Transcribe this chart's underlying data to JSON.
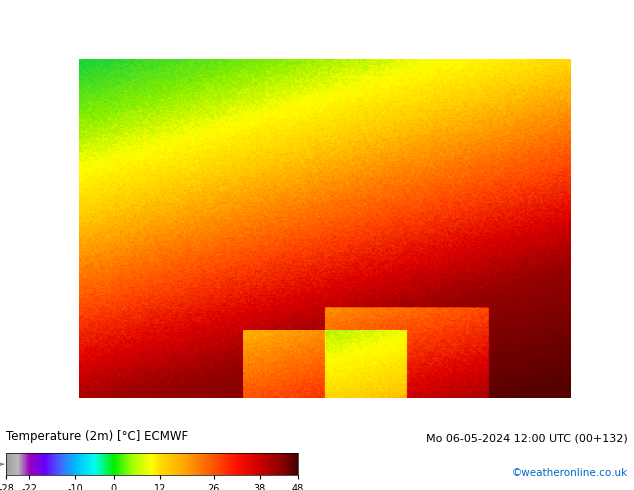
{
  "title_left": "Temperature (2m) [°C] ECMWF",
  "title_right": "Mo 06-05-2024 12:00 UTC (00+132)",
  "credit": "©weatheronline.co.uk",
  "colorbar_ticks": [
    -28,
    -22,
    -10,
    0,
    12,
    26,
    38,
    48
  ],
  "colorbar_colors": [
    "#a0a0a0",
    "#c0c0c0",
    "#d8d8d8",
    "#9b00c8",
    "#7a00ff",
    "#5555ff",
    "#00aaff",
    "#00ffff",
    "#00ff88",
    "#00dd00",
    "#88ee00",
    "#ffff00",
    "#ffcc00",
    "#ff9900",
    "#ff6600",
    "#ff2200",
    "#cc0000",
    "#880000",
    "#550000"
  ],
  "bg_color": "#ffffff",
  "map_bg": "#a0c8f0",
  "colorbar_vmin": -28,
  "colorbar_vmax": 48,
  "fig_width": 6.34,
  "fig_height": 4.9
}
